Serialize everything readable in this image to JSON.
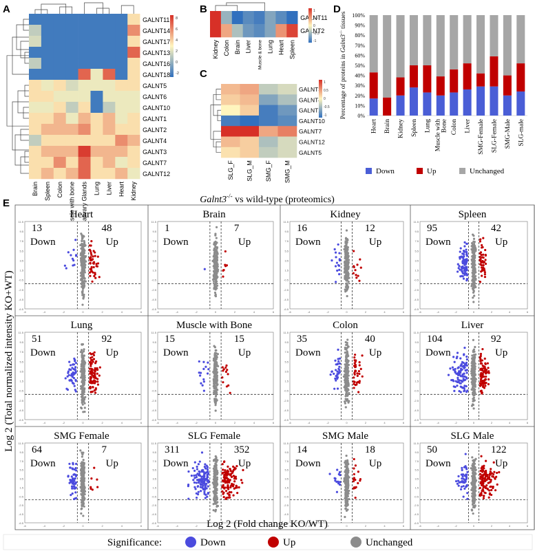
{
  "panels": {
    "A": {
      "label": "A",
      "rows": [
        "GALNT11",
        "GALNT14",
        "GALNT17",
        "GALNT13",
        "GALNT16",
        "GALNT18",
        "GALNT5",
        "GALNT6",
        "GALNT10",
        "GALNT1",
        "GALNT2",
        "GALNT4",
        "GALNT3",
        "GALNT7",
        "GALNT12"
      ],
      "cols": [
        "Brain",
        "Spleen",
        "Colon",
        "Muscle with bone",
        "Salivary Glands",
        "Lung",
        "Liver",
        "Heart",
        "Kidney"
      ],
      "values": [
        [
          -1,
          -1,
          -1,
          -1,
          -1,
          -1,
          -1,
          -1,
          2
        ],
        [
          0,
          -1,
          -1,
          -1,
          -1,
          -1,
          -1,
          -1,
          4
        ],
        [
          0.5,
          -1,
          -1,
          -1,
          -1,
          -1,
          -1,
          -1,
          2
        ],
        [
          -1,
          -1,
          -1,
          -1,
          -1,
          -1,
          -1,
          -1,
          5
        ],
        [
          0,
          -1,
          -1,
          -1,
          -1,
          -1,
          -1,
          -1,
          2
        ],
        [
          -1,
          -1,
          -1,
          -1,
          5,
          1,
          5,
          -1,
          2
        ],
        [
          2,
          1,
          2,
          0.5,
          1,
          1,
          1,
          2,
          2
        ],
        [
          2,
          2,
          1,
          1,
          1,
          -1,
          1,
          1,
          1
        ],
        [
          1,
          1,
          2,
          0,
          2,
          -1,
          0,
          1,
          1
        ],
        [
          2,
          2,
          3,
          1,
          3,
          2,
          3,
          1,
          2
        ],
        [
          2,
          3,
          3,
          3,
          4,
          2,
          3,
          2,
          2
        ],
        [
          0,
          2,
          2,
          2,
          2,
          2,
          2,
          4,
          3
        ],
        [
          2,
          3,
          3,
          3,
          6,
          3,
          3,
          3,
          2
        ],
        [
          2,
          2,
          4,
          2,
          5,
          2,
          3,
          1,
          2
        ],
        [
          2,
          3,
          2,
          3,
          5,
          2,
          2,
          3,
          1
        ]
      ],
      "legend_ticks": [
        "8",
        "6",
        "4",
        "2",
        "0",
        "-2"
      ]
    },
    "B": {
      "label": "B",
      "rows": [
        "GALNT11",
        "GALNT2"
      ],
      "cols": [
        "Kidney",
        "Colon",
        "Brain",
        "Liver",
        "Muscle & bone",
        "Lung",
        "Heart",
        "Spleen"
      ],
      "values": [
        [
          1,
          -0.5,
          -1,
          -0.8,
          -0.9,
          -0.6,
          -0.8,
          -1
        ],
        [
          1.0,
          0.4,
          -0.4,
          -0.7,
          -0.8,
          -0.6,
          0.5,
          0.9
        ]
      ],
      "legend_ticks": [
        "1",
        "0.5",
        "0",
        "-0.5",
        "-1"
      ]
    },
    "C": {
      "label": "C",
      "rows": [
        "GALNT3",
        "GALNT4",
        "GALNT2",
        "GALNT10",
        "GALNT7",
        "GALNT12",
        "GALNT5"
      ],
      "cols": [
        "SLG_F",
        "SLG_M",
        "SMG_F",
        "SMG_M"
      ],
      "values": [
        [
          0.3,
          0.4,
          -0.3,
          -0.2
        ],
        [
          0.2,
          0.3,
          -0.6,
          -0.4
        ],
        [
          0,
          0.2,
          -0.9,
          -0.7
        ],
        [
          -0.9,
          -1.0,
          -0.9,
          -0.8
        ],
        [
          1.1,
          1.4,
          0.4,
          0.6
        ],
        [
          0.3,
          0.2,
          -0.4,
          -0.2
        ],
        [
          0.1,
          0.2,
          -0.3,
          -0.2
        ]
      ],
      "legend_ticks": [
        "1",
        "0.5",
        "0",
        "-0.5",
        "-1"
      ]
    }
  },
  "chart_data": [
    {
      "type": "bar",
      "panel": "D",
      "title": "",
      "ylabel_pre": "Percentage of proteins in ",
      "ylabel_gene": "Galnt3",
      "ylabel_sup": "-/-",
      "ylabel_post": " tissues",
      "categories": [
        "Heart",
        "Brain",
        "Kidney",
        "Spleen",
        "Lung",
        "Muscle with Bone",
        "Colon",
        "Liver",
        "SMG-Female",
        "SLG-Female",
        "SMG-Male",
        "SLG-male"
      ],
      "series": [
        {
          "name": "Down",
          "color": "#4a5ed6",
          "values": [
            17,
            0,
            20,
            28,
            23,
            20,
            23,
            26,
            29,
            29,
            20,
            24
          ]
        },
        {
          "name": "Up",
          "color": "#c00000",
          "values": [
            26,
            18,
            18,
            22,
            27,
            19,
            23,
            26,
            13,
            30,
            20,
            28
          ]
        },
        {
          "name": "Unchanged",
          "color": "#a6a6a6",
          "values": [
            57,
            82,
            62,
            50,
            50,
            61,
            54,
            48,
            58,
            41,
            60,
            48
          ]
        }
      ],
      "yticks": [
        "0%",
        "10%",
        "20%",
        "30%",
        "40%",
        "50%",
        "60%",
        "70%",
        "80%",
        "90%",
        "100%"
      ],
      "ylim": [
        0,
        100
      ]
    },
    {
      "type": "scatter",
      "panel": "E",
      "title_pre": "Galnt3",
      "title_sup": "-/-",
      "title_post": " vs wild-type (proteomics)",
      "xlabel": "Log 2 (Fold change KO/WT)",
      "ylabel": "Log 2 (Total normalized intensity KO+WT)",
      "xticks": [
        "-6",
        "-4",
        "-2",
        "0",
        "2",
        "4",
        "6"
      ],
      "yticks": [
        "11.5",
        "9.5",
        "7.5",
        "5.5",
        "3.5",
        "1.5",
        "-0.5",
        "-2.5",
        "-4.5",
        "-6.5"
      ],
      "subplots": [
        {
          "name": "Heart",
          "down": 13,
          "up": 48
        },
        {
          "name": "Brain",
          "down": 1,
          "up": 7
        },
        {
          "name": "Kidney",
          "down": 16,
          "up": 12
        },
        {
          "name": "Spleen",
          "down": 95,
          "up": 42
        },
        {
          "name": "Lung",
          "down": 51,
          "up": 92
        },
        {
          "name": "Muscle with Bone",
          "down": 15,
          "up": 15
        },
        {
          "name": "Colon",
          "down": 35,
          "up": 40
        },
        {
          "name": "Liver",
          "down": 104,
          "up": 92
        },
        {
          "name": "SMG Female",
          "down": 64,
          "up": 7
        },
        {
          "name": "SLG Female",
          "down": 311,
          "up": 352
        },
        {
          "name": "SMG Male",
          "down": 14,
          "up": 18
        },
        {
          "name": "SLG Male",
          "down": 50,
          "up": 122
        }
      ],
      "down_word": "Down",
      "up_word": "Up",
      "legend": {
        "title": "Significance:",
        "items": [
          {
            "name": "Down",
            "color": "#4b4bde"
          },
          {
            "name": "Up",
            "color": "#c00000"
          },
          {
            "name": "Unchanged",
            "color": "#8c8c8c"
          }
        ]
      }
    }
  ]
}
